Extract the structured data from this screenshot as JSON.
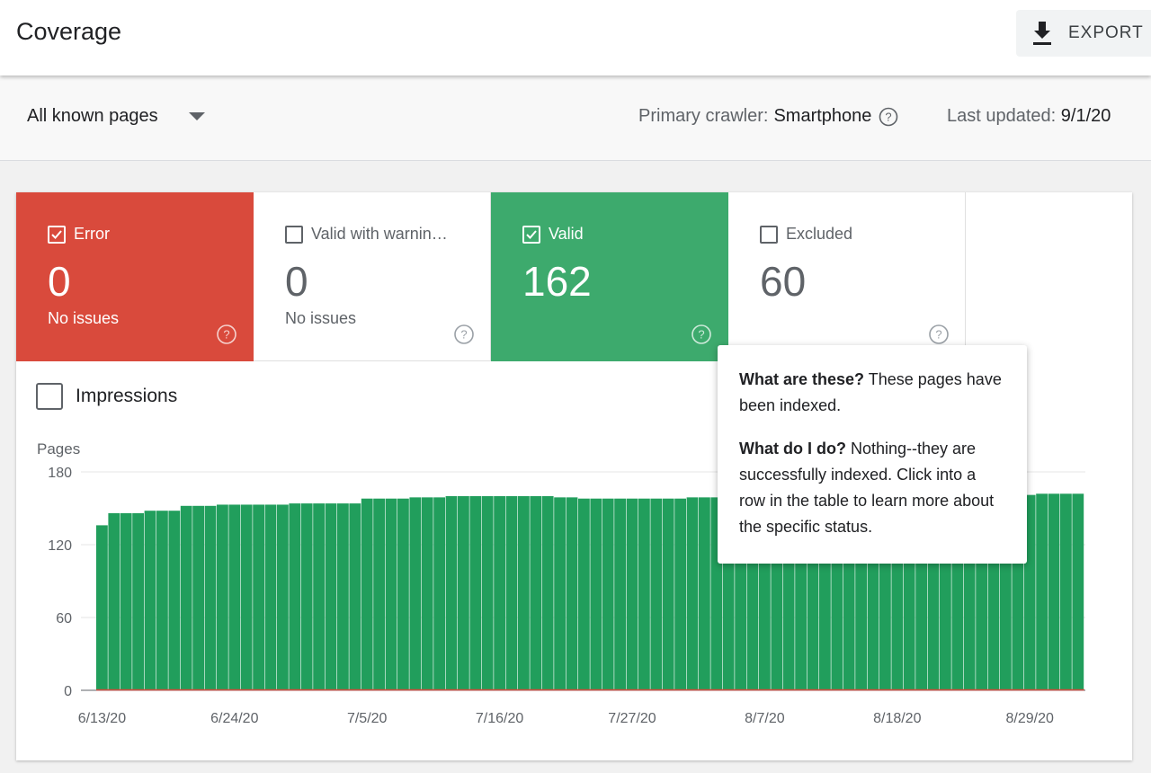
{
  "header": {
    "title": "Coverage",
    "export_label": "EXPORT"
  },
  "filter": {
    "selected": "All known pages",
    "crawler_label": "Primary crawler:",
    "crawler_value": "Smartphone",
    "updated_label": "Last updated:",
    "updated_value": "9/1/20"
  },
  "tiles": [
    {
      "name": "Error",
      "count": "0",
      "sub": "No issues",
      "checked": true,
      "color": "#d94a3c"
    },
    {
      "name": "Valid with warnin…",
      "count": "0",
      "sub": "No issues",
      "checked": false,
      "color": "#ffffff"
    },
    {
      "name": "Valid",
      "count": "162",
      "sub": "",
      "checked": true,
      "color": "#3daa6d"
    },
    {
      "name": "Excluded",
      "count": "60",
      "sub": "",
      "checked": false,
      "color": "#ffffff"
    }
  ],
  "impressions_label": "Impressions",
  "tooltip": {
    "q1": "What are these?",
    "a1": " These pages have been indexed.",
    "q2": "What do I do?",
    "a2": " Nothing--they are successfully indexed. Click into a row in the table to learn more about the specific status."
  },
  "chart_data": {
    "type": "bar",
    "ylabel": "Pages",
    "ylim": [
      0,
      180
    ],
    "yticks": [
      0,
      60,
      120,
      180
    ],
    "xtick_labels": [
      "6/13/20",
      "6/24/20",
      "7/5/20",
      "7/16/20",
      "7/27/20",
      "8/7/20",
      "8/18/20",
      "8/29/20"
    ],
    "start_date": "6/13/20",
    "series": [
      {
        "values": [
          136,
          146,
          146,
          146,
          148,
          148,
          148,
          152,
          152,
          152,
          153,
          153,
          153,
          153,
          153,
          153,
          154,
          154,
          154,
          154,
          154,
          154,
          158,
          158,
          158,
          158,
          159,
          159,
          159,
          160,
          160,
          160,
          160,
          160,
          160,
          160,
          160,
          160,
          159,
          159,
          158,
          158,
          158,
          158,
          158,
          158,
          158,
          158,
          158,
          159,
          159,
          159,
          159,
          159,
          159,
          159,
          159,
          159,
          159,
          160,
          160,
          160,
          160,
          160,
          160,
          160,
          160,
          160,
          161,
          161,
          161,
          161,
          161,
          161,
          161,
          161,
          161,
          161,
          162,
          162,
          162,
          162
        ],
        "color": "#219e5c"
      },
      {
        "values": [
          0,
          0,
          0,
          0,
          0,
          0,
          0,
          0,
          0,
          0,
          0,
          0,
          0,
          0,
          0,
          0,
          0,
          0,
          0,
          0,
          0,
          0,
          0,
          0,
          0,
          0,
          0,
          0,
          0,
          0,
          0,
          0,
          0,
          0,
          0,
          0,
          0,
          0,
          0,
          0,
          0,
          0,
          0,
          0,
          0,
          0,
          0,
          0,
          0,
          0,
          0,
          0,
          0,
          0,
          0,
          0,
          0,
          0,
          0,
          0,
          0,
          0,
          0,
          0,
          0,
          0,
          0,
          0,
          0,
          0,
          0,
          0,
          0,
          0,
          0,
          0,
          0,
          0,
          0,
          0,
          0,
          0
        ],
        "color": "#d94a3c"
      }
    ]
  }
}
